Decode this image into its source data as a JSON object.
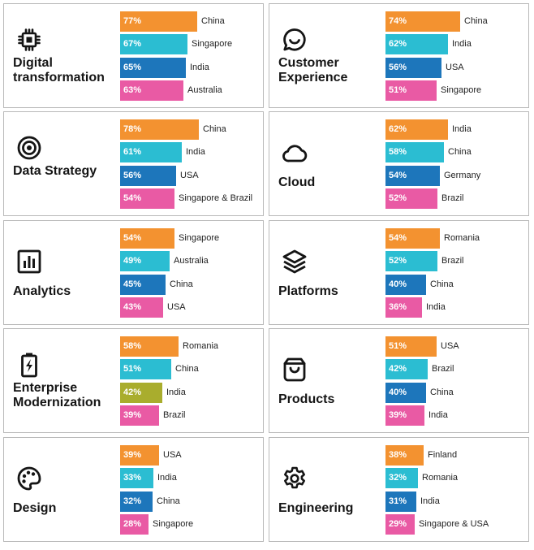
{
  "colors": {
    "orange": "#f39230",
    "teal": "#2bbdd2",
    "blue": "#1d76bb",
    "pink": "#e95aa4",
    "olive": "#a9ad2d"
  },
  "chart_data": [
    {
      "type": "bar",
      "title": "Digital transformation",
      "icon": "chip-icon",
      "categories": [
        "China",
        "Singapore",
        "India",
        "Australia"
      ],
      "values": [
        77,
        67,
        65,
        63
      ],
      "value_labels": [
        "77%",
        "67%",
        "65%",
        "63%"
      ],
      "bar_colors": [
        "orange",
        "teal",
        "blue",
        "pink"
      ],
      "xlim": [
        0,
        100
      ]
    },
    {
      "type": "bar",
      "title": "Customer Experience",
      "icon": "chat-bubble-icon",
      "categories": [
        "China",
        "India",
        "USA",
        "Singapore"
      ],
      "values": [
        74,
        62,
        56,
        51
      ],
      "value_labels": [
        "74%",
        "62%",
        "56%",
        "51%"
      ],
      "bar_colors": [
        "orange",
        "teal",
        "blue",
        "pink"
      ],
      "xlim": [
        0,
        100
      ]
    },
    {
      "type": "bar",
      "title": "Data Strategy",
      "icon": "target-icon",
      "categories": [
        "China",
        "India",
        "USA",
        "Singapore & Brazil"
      ],
      "values": [
        78,
        61,
        56,
        54
      ],
      "value_labels": [
        "78%",
        "61%",
        "56%",
        "54%"
      ],
      "bar_colors": [
        "orange",
        "teal",
        "blue",
        "pink"
      ],
      "xlim": [
        0,
        100
      ]
    },
    {
      "type": "bar",
      "title": "Cloud",
      "icon": "cloud-icon",
      "categories": [
        "India",
        "China",
        "Germany",
        "Brazil"
      ],
      "values": [
        62,
        58,
        54,
        52
      ],
      "value_labels": [
        "62%",
        "58%",
        "54%",
        "52%"
      ],
      "bar_colors": [
        "orange",
        "teal",
        "blue",
        "pink"
      ],
      "xlim": [
        0,
        100
      ]
    },
    {
      "type": "bar",
      "title": "Analytics",
      "icon": "bar-chart-icon",
      "categories": [
        "Singapore",
        "Australia",
        "China",
        "USA"
      ],
      "values": [
        54,
        49,
        45,
        43
      ],
      "value_labels": [
        "54%",
        "49%",
        "45%",
        "43%"
      ],
      "bar_colors": [
        "orange",
        "teal",
        "blue",
        "pink"
      ],
      "xlim": [
        0,
        100
      ]
    },
    {
      "type": "bar",
      "title": "Platforms",
      "icon": "layers-icon",
      "categories": [
        "Romania",
        "Brazil",
        "China",
        "India"
      ],
      "values": [
        54,
        52,
        40,
        36
      ],
      "value_labels": [
        "54%",
        "52%",
        "40%",
        "36%"
      ],
      "bar_colors": [
        "orange",
        "teal",
        "blue",
        "pink"
      ],
      "xlim": [
        0,
        100
      ]
    },
    {
      "type": "bar",
      "title": "Enterprise Modernization",
      "icon": "battery-bolt-icon",
      "categories": [
        "Romania",
        "China",
        "India",
        "Brazil"
      ],
      "values": [
        58,
        51,
        42,
        39
      ],
      "value_labels": [
        "58%",
        "51%",
        "42%",
        "39%"
      ],
      "bar_colors": [
        "orange",
        "teal",
        "olive",
        "pink"
      ],
      "xlim": [
        0,
        100
      ]
    },
    {
      "type": "bar",
      "title": "Products",
      "icon": "shopping-bag-icon",
      "categories": [
        "USA",
        "Brazil",
        "China",
        "India"
      ],
      "values": [
        51,
        42,
        40,
        39
      ],
      "value_labels": [
        "51%",
        "42%",
        "40%",
        "39%"
      ],
      "bar_colors": [
        "orange",
        "teal",
        "blue",
        "pink"
      ],
      "xlim": [
        0,
        100
      ]
    },
    {
      "type": "bar",
      "title": "Design",
      "icon": "palette-icon",
      "categories": [
        "USA",
        "India",
        "China",
        "Singapore"
      ],
      "values": [
        39,
        33,
        32,
        28
      ],
      "value_labels": [
        "39%",
        "33%",
        "32%",
        "28%"
      ],
      "bar_colors": [
        "orange",
        "teal",
        "blue",
        "pink"
      ],
      "xlim": [
        0,
        100
      ]
    },
    {
      "type": "bar",
      "title": "Engineering",
      "icon": "gear-icon",
      "categories": [
        "Finland",
        "Romania",
        "India",
        "Singapore & USA"
      ],
      "values": [
        38,
        32,
        31,
        29
      ],
      "value_labels": [
        "38%",
        "32%",
        "31%",
        "29%"
      ],
      "bar_colors": [
        "orange",
        "teal",
        "blue",
        "pink"
      ],
      "xlim": [
        0,
        100
      ]
    }
  ]
}
